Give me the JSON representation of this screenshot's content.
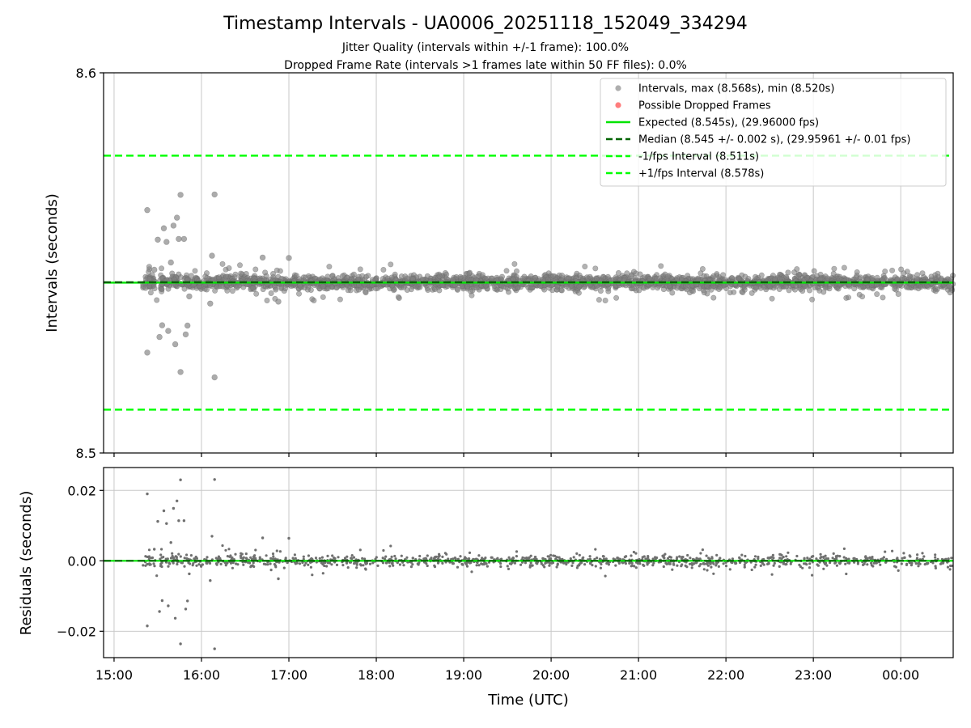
{
  "figure": {
    "title": "Timestamp Intervals - UA0006_20251118_152049_334294",
    "subtitle_line1": "Jitter Quality (intervals within +/-1 frame): 100.0%",
    "subtitle_line2": "Dropped Frame Rate (intervals >1 frames late within 50 FF files): 0.0%"
  },
  "colors": {
    "points": "#808080",
    "dropped": "#ff4d4d",
    "expected": "#00e400",
    "median": "#006400",
    "fps_interval": "#00ff00",
    "grid": "#c8c8c8"
  },
  "chart_data": [
    {
      "type": "scatter",
      "ylabel": "Intervals (seconds)",
      "ylim": [
        8.5,
        8.6
      ],
      "xlim_hours": [
        14.88,
        24.6
      ],
      "yticks": [
        8.5,
        8.6
      ],
      "ytick_labels": [
        "8.5",
        "8.6"
      ],
      "grid": "vertical only",
      "legend_placement": "top-right",
      "legend": [
        {
          "label": "Intervals, max (8.568s), min (8.520s)",
          "kind": "marker",
          "color": "#a0a0a0"
        },
        {
          "label": "Possible Dropped Frames",
          "kind": "marker",
          "color": "#ff6666"
        },
        {
          "label": "Expected (8.545s), (29.96000 fps)",
          "kind": "line-solid",
          "color": "#00e400"
        },
        {
          "label": "Median (8.545 +/- 0.002 s), (29.95961 +/- 0.01 fps)",
          "kind": "line-dashed",
          "color": "#006400"
        },
        {
          "label": "-1/fps Interval (8.511s)",
          "kind": "line-dashed",
          "color": "#00ff00"
        },
        {
          "label": "+1/fps Interval (8.578s)",
          "kind": "line-dashed",
          "color": "#00ff00"
        }
      ],
      "reference_lines": {
        "expected": 8.5448,
        "median": 8.5449,
        "minus_fps": 8.5114,
        "plus_fps": 8.5782
      },
      "interval_max": 8.568,
      "interval_min": 8.52,
      "series": {
        "dense_band": {
          "x_start_hour": 15.33,
          "x_end_hour": 24.6,
          "center": 8.5449,
          "spread": 0.0016
        },
        "outliers": [
          {
            "x": 15.38,
            "y": 8.5639
          },
          {
            "x": 15.38,
            "y": 8.5264
          },
          {
            "x": 15.46,
            "y": 8.5482
          },
          {
            "x": 15.5,
            "y": 8.5561
          },
          {
            "x": 15.52,
            "y": 8.5305
          },
          {
            "x": 15.55,
            "y": 8.5336
          },
          {
            "x": 15.57,
            "y": 8.5591
          },
          {
            "x": 15.6,
            "y": 8.5555
          },
          {
            "x": 15.62,
            "y": 8.5321
          },
          {
            "x": 15.65,
            "y": 8.5501
          },
          {
            "x": 15.68,
            "y": 8.5598
          },
          {
            "x": 15.7,
            "y": 8.5286
          },
          {
            "x": 15.72,
            "y": 8.5619
          },
          {
            "x": 15.74,
            "y": 8.5563
          },
          {
            "x": 15.76,
            "y": 8.5679
          },
          {
            "x": 15.76,
            "y": 8.5213
          },
          {
            "x": 15.8,
            "y": 8.5563
          },
          {
            "x": 15.82,
            "y": 8.5312
          },
          {
            "x": 15.84,
            "y": 8.5335
          },
          {
            "x": 15.86,
            "y": 8.5412
          },
          {
            "x": 16.12,
            "y": 8.5519
          },
          {
            "x": 16.15,
            "y": 8.568
          },
          {
            "x": 16.15,
            "y": 8.5199
          },
          {
            "x": 16.1,
            "y": 8.5393
          },
          {
            "x": 16.7,
            "y": 8.5514
          },
          {
            "x": 16.88,
            "y": 8.5398
          },
          {
            "x": 17.0,
            "y": 8.5513
          }
        ]
      }
    },
    {
      "type": "scatter",
      "xlabel": "Time (UTC)",
      "ylabel": "Residuals (seconds)",
      "ylim": [
        -0.0275,
        0.0265
      ],
      "xlim_hours": [
        14.88,
        24.6
      ],
      "yticks": [
        -0.02,
        0.0,
        0.02
      ],
      "ytick_labels": [
        "−0.02",
        "0.00",
        "0.02"
      ],
      "xticks_hours": [
        15,
        16,
        17,
        18,
        19,
        20,
        21,
        22,
        23,
        24
      ],
      "xtick_labels": [
        "15:00",
        "16:00",
        "17:00",
        "18:00",
        "19:00",
        "20:00",
        "21:00",
        "22:00",
        "23:00",
        "00:00"
      ],
      "grid": "both",
      "reference_line": 0.0
    }
  ]
}
